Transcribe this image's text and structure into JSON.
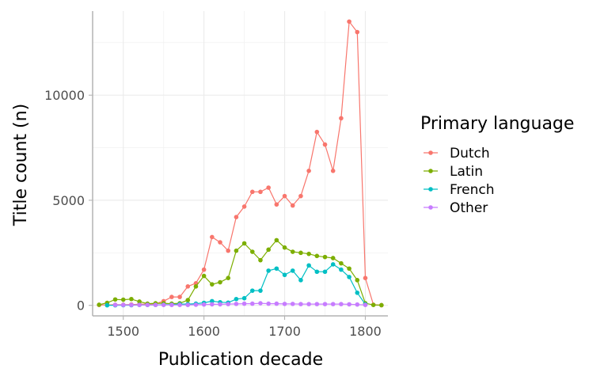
{
  "chart_data": {
    "type": "line",
    "title": "",
    "xlabel": "Publication decade",
    "ylabel": "Title count (n)",
    "xlim": [
      1462,
      1828
    ],
    "ylim": [
      -500,
      14000
    ],
    "x_ticks": [
      1500,
      1600,
      1700,
      1800
    ],
    "y_ticks": [
      0,
      5000,
      10000
    ],
    "x_tick_labels": [
      "1500",
      "1600",
      "1700",
      "1800"
    ],
    "y_tick_labels": [
      "0",
      "5000",
      "10000"
    ],
    "grid": true,
    "legend": {
      "title": "Primary language",
      "position": "right"
    },
    "series": [
      {
        "name": "Dutch",
        "color": "#F8766D",
        "x": [
          1470,
          1480,
          1490,
          1500,
          1510,
          1520,
          1530,
          1540,
          1550,
          1560,
          1570,
          1580,
          1590,
          1600,
          1610,
          1620,
          1630,
          1640,
          1650,
          1660,
          1670,
          1680,
          1690,
          1700,
          1710,
          1720,
          1730,
          1740,
          1750,
          1760,
          1770,
          1780,
          1790,
          1800,
          1810,
          1820
        ],
        "values": [
          20,
          20,
          30,
          30,
          40,
          50,
          60,
          80,
          200,
          400,
          400,
          900,
          1050,
          1700,
          3250,
          3000,
          2600,
          4200,
          4700,
          5400,
          5400,
          5600,
          4800,
          5200,
          4750,
          5200,
          6400,
          8250,
          7650,
          6400,
          8900,
          13500,
          13000,
          1300,
          30,
          10
        ]
      },
      {
        "name": "Latin",
        "color": "#7CAE00",
        "x": [
          1470,
          1480,
          1490,
          1500,
          1510,
          1520,
          1530,
          1540,
          1550,
          1560,
          1570,
          1580,
          1590,
          1600,
          1610,
          1620,
          1630,
          1640,
          1650,
          1660,
          1670,
          1680,
          1690,
          1700,
          1710,
          1720,
          1730,
          1740,
          1750,
          1760,
          1770,
          1780,
          1790,
          1800,
          1810,
          1820
        ],
        "values": [
          30,
          120,
          280,
          270,
          300,
          180,
          80,
          100,
          100,
          80,
          100,
          250,
          900,
          1400,
          1000,
          1100,
          1300,
          2600,
          2950,
          2550,
          2150,
          2650,
          3100,
          2750,
          2550,
          2500,
          2450,
          2350,
          2300,
          2250,
          2000,
          1750,
          1200,
          100,
          20,
          10
        ]
      },
      {
        "name": "French",
        "color": "#00BFC4",
        "x": [
          1480,
          1490,
          1500,
          1510,
          1520,
          1530,
          1540,
          1550,
          1560,
          1570,
          1580,
          1590,
          1600,
          1610,
          1620,
          1630,
          1640,
          1650,
          1660,
          1670,
          1680,
          1690,
          1700,
          1710,
          1720,
          1730,
          1740,
          1750,
          1760,
          1770,
          1780,
          1790,
          1800
        ],
        "values": [
          5,
          5,
          10,
          10,
          20,
          20,
          20,
          30,
          30,
          60,
          60,
          80,
          120,
          200,
          150,
          130,
          300,
          340,
          700,
          700,
          1650,
          1750,
          1450,
          1650,
          1200,
          1900,
          1600,
          1600,
          1950,
          1700,
          1350,
          600,
          50
        ]
      },
      {
        "name": "Other",
        "color": "#C77CFF",
        "x": [
          1490,
          1500,
          1510,
          1520,
          1530,
          1540,
          1550,
          1560,
          1570,
          1580,
          1590,
          1600,
          1610,
          1620,
          1630,
          1640,
          1650,
          1660,
          1670,
          1680,
          1690,
          1700,
          1710,
          1720,
          1730,
          1740,
          1750,
          1760,
          1770,
          1780,
          1790,
          1800
        ],
        "values": [
          20,
          20,
          20,
          20,
          20,
          20,
          20,
          20,
          20,
          20,
          30,
          40,
          50,
          50,
          60,
          70,
          80,
          80,
          100,
          80,
          80,
          70,
          70,
          60,
          60,
          60,
          60,
          60,
          60,
          50,
          40,
          20
        ]
      }
    ]
  }
}
